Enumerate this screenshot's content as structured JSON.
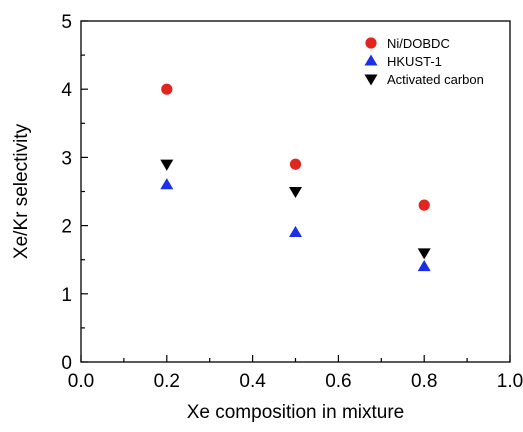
{
  "chart_data": {
    "type": "scatter",
    "title": "",
    "xlabel": "Xe composition in mixture",
    "ylabel": "Xe/Kr selectivity",
    "xlim": [
      0.0,
      1.0
    ],
    "ylim": [
      0,
      5
    ],
    "x_ticks": [
      "0.0",
      "0.2",
      "0.4",
      "0.6",
      "0.8",
      "1.0"
    ],
    "y_ticks": [
      "0",
      "1",
      "2",
      "3",
      "4",
      "5"
    ],
    "grid": false,
    "legend_position": "top-right",
    "series": [
      {
        "name": "Ni/DOBDC",
        "marker": "circle",
        "color": "#e0261f",
        "points": [
          {
            "x": 0.2,
            "y": 4.0
          },
          {
            "x": 0.5,
            "y": 2.9
          },
          {
            "x": 0.8,
            "y": 2.3
          }
        ]
      },
      {
        "name": "HKUST-1",
        "marker": "triangle-up",
        "color": "#1a2fe6",
        "points": [
          {
            "x": 0.2,
            "y": 2.6
          },
          {
            "x": 0.5,
            "y": 1.9
          },
          {
            "x": 0.8,
            "y": 1.4
          }
        ]
      },
      {
        "name": "Activated carbon",
        "marker": "triangle-down",
        "color": "#000000",
        "points": [
          {
            "x": 0.2,
            "y": 2.9
          },
          {
            "x": 0.5,
            "y": 2.5
          },
          {
            "x": 0.8,
            "y": 1.6
          }
        ]
      }
    ]
  }
}
